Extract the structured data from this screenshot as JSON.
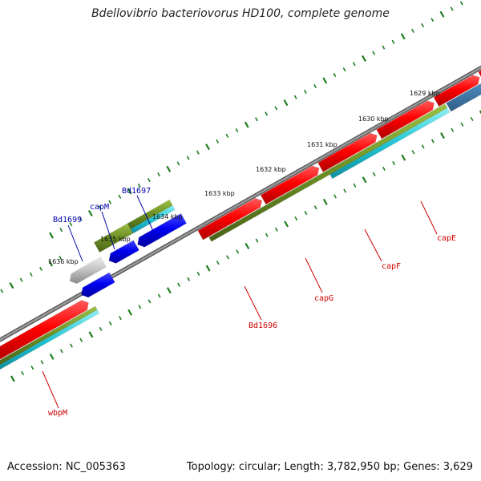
{
  "title": "Bdellovibrio bacteriovorus HD100, complete genome",
  "footer": {
    "accession": "Accession: NC_005363",
    "summary": "Topology: circular; Length: 3,782,950 bp; Genes: 3,629"
  },
  "colors": {
    "backbone": "#808080",
    "cds_forward": "#e60000",
    "cds_reverse": "#0000ee",
    "gene_bar": "#6b8e23",
    "cog_bar": "#22c4d4",
    "pseudo": "#bbbbbb",
    "steel": "#4682b4",
    "tick": "#1e7d1e",
    "label_forward": "#cc0000",
    "label_reverse": "#0000aa"
  },
  "ruler_labels": [
    "1629 kbp",
    "1630 kbp",
    "1631 kbp",
    "1632 kbp",
    "1633 kbp",
    "1634 kbp",
    "1635 kbp",
    "1636 kbp"
  ],
  "gene_labels": [
    {
      "name": "Bd1697",
      "strand": "reverse"
    },
    {
      "name": "capM",
      "strand": "reverse"
    },
    {
      "name": "Bd1699",
      "strand": "reverse"
    },
    {
      "name": "capE",
      "strand": "forward"
    },
    {
      "name": "capF",
      "strand": "forward"
    },
    {
      "name": "capG",
      "strand": "forward"
    },
    {
      "name": "Bd1696",
      "strand": "forward"
    },
    {
      "name": "wbpM",
      "strand": "forward"
    }
  ]
}
